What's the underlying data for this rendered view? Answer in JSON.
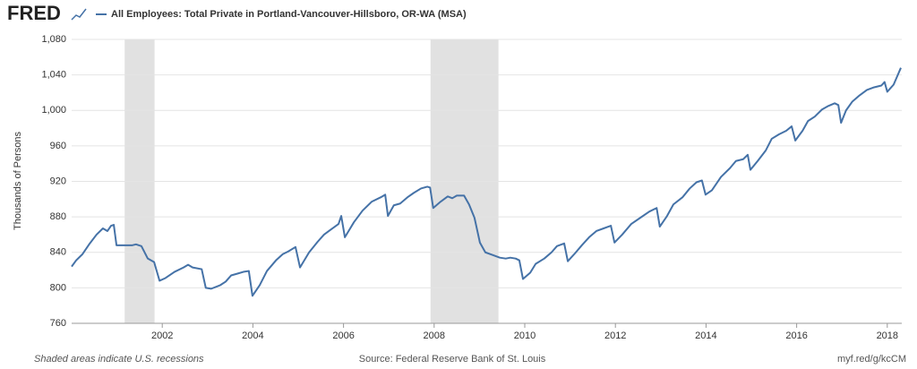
{
  "logo": "FRED",
  "chart_data": {
    "type": "line",
    "title": "All Employees: Total Private in Portland-Vancouver-Hillsboro, OR-WA (MSA)",
    "ylabel": "Thousands of Persons",
    "note": "Shaded areas indicate U.S. recessions",
    "source": "Source: Federal Reserve Bank of St. Louis",
    "link": "myf.red/g/kcCM",
    "xlim": [
      2000,
      2018.32
    ],
    "xticks": [
      2002,
      2004,
      2006,
      2008,
      2010,
      2012,
      2014,
      2016,
      2018
    ],
    "ylim": [
      760,
      1080
    ],
    "yticks": [
      760,
      800,
      840,
      880,
      920,
      960,
      {
        "value": 1000,
        "label": "1,000"
      },
      {
        "value": 1040,
        "label": "1,040"
      },
      {
        "value": 1080,
        "label": "1,080"
      }
    ],
    "grid": true,
    "recession_color": "#e1e1e1",
    "recessions": [
      [
        2001.17,
        2001.83
      ],
      [
        2007.92,
        2009.42
      ]
    ],
    "x": [
      2000.0,
      2000.1,
      2000.24,
      2000.4,
      2000.55,
      2000.69,
      2000.79,
      2000.87,
      2000.93,
      2000.99,
      2001.19,
      2001.34,
      2001.42,
      2001.54,
      2001.68,
      2001.82,
      2001.94,
      2002.07,
      2002.27,
      2002.47,
      2002.57,
      2002.67,
      2002.87,
      2002.96,
      2003.08,
      2003.28,
      2003.4,
      2003.52,
      2003.66,
      2003.79,
      2003.91,
      2003.99,
      2004.15,
      2004.31,
      2004.51,
      2004.66,
      2004.78,
      2004.94,
      2005.04,
      2005.24,
      2005.43,
      2005.57,
      2005.73,
      2005.89,
      2005.95,
      2006.03,
      2006.23,
      2006.42,
      2006.62,
      2006.82,
      2006.92,
      2006.98,
      2007.11,
      2007.25,
      2007.41,
      2007.55,
      2007.71,
      2007.85,
      2007.91,
      2007.98,
      2008.14,
      2008.3,
      2008.4,
      2008.5,
      2008.66,
      2008.77,
      2008.89,
      2009.01,
      2009.13,
      2009.29,
      2009.45,
      2009.58,
      2009.68,
      2009.8,
      2009.88,
      2009.96,
      2010.12,
      2010.24,
      2010.43,
      2010.59,
      2010.71,
      2010.87,
      2010.95,
      2011.11,
      2011.26,
      2011.42,
      2011.58,
      2011.74,
      2011.9,
      2011.98,
      2012.15,
      2012.35,
      2012.55,
      2012.75,
      2012.91,
      2012.98,
      2013.14,
      2013.28,
      2013.48,
      2013.64,
      2013.79,
      2013.91,
      2013.99,
      2014.13,
      2014.33,
      2014.53,
      2014.66,
      2014.82,
      2014.92,
      2014.98,
      2015.14,
      2015.32,
      2015.45,
      2015.61,
      2015.77,
      2015.89,
      2015.97,
      2016.13,
      2016.25,
      2016.4,
      2016.56,
      2016.7,
      2016.84,
      2016.92,
      2016.98,
      2017.09,
      2017.23,
      2017.39,
      2017.55,
      2017.71,
      2017.87,
      2017.94,
      2018.0,
      2018.14,
      2018.3
    ],
    "series": [
      {
        "name": "All Employees: Total Private in Portland-Vancouver-Hillsboro, OR-WA (MSA)",
        "color": "#4572a7",
        "values": [
          824,
          831,
          838,
          850,
          860,
          867,
          864,
          870,
          871,
          848,
          848,
          848,
          849,
          847,
          833,
          829,
          808,
          811,
          818,
          823,
          826,
          823,
          821,
          800,
          799,
          803,
          807,
          814,
          816,
          818,
          819,
          791,
          803,
          819,
          831,
          838,
          841,
          846,
          823,
          840,
          852,
          860,
          866,
          872,
          881,
          857,
          874,
          887,
          897,
          902,
          905,
          881,
          893,
          895,
          902,
          907,
          912,
          914,
          913,
          890,
          897,
          903,
          901,
          904,
          904,
          894,
          879,
          851,
          840,
          837,
          834,
          833,
          834,
          833,
          831,
          810,
          817,
          827,
          833,
          840,
          847,
          850,
          830,
          839,
          848,
          857,
          864,
          867,
          870,
          851,
          860,
          872,
          879,
          886,
          890,
          869,
          881,
          894,
          902,
          912,
          919,
          921,
          905,
          910,
          925,
          935,
          943,
          945,
          950,
          933,
          943,
          955,
          968,
          973,
          977,
          982,
          966,
          977,
          988,
          993,
          1001,
          1005,
          1008,
          1006,
          986,
          1000,
          1010,
          1017,
          1023,
          1026,
          1028,
          1032,
          1021,
          1029,
          1048
        ]
      }
    ]
  }
}
